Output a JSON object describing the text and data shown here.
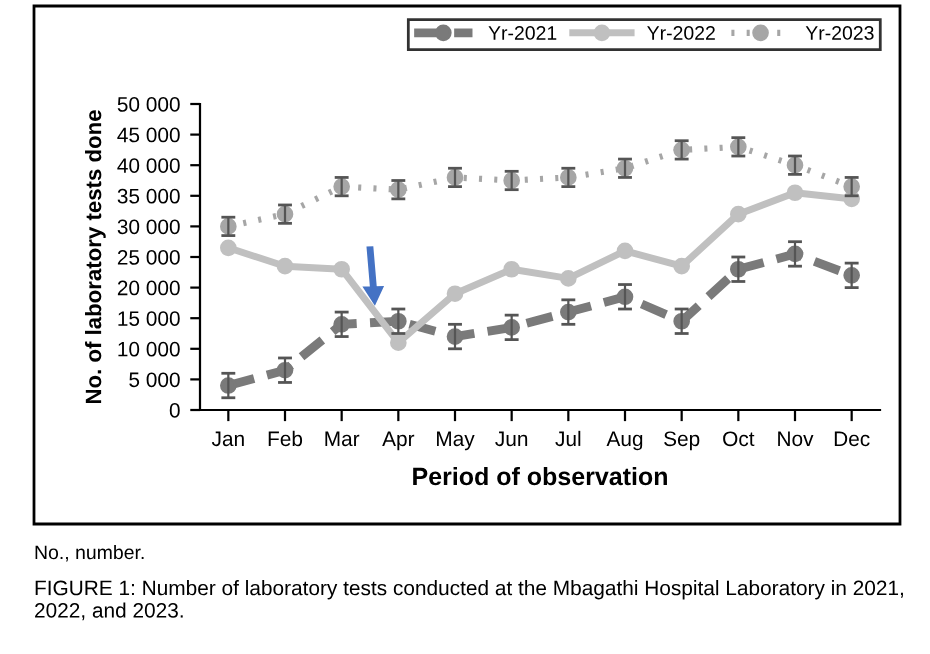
{
  "chart_data": {
    "type": "line",
    "xlabel": "Period of observation",
    "ylabel": "No. of laboratory tests done",
    "categories": [
      "Jan",
      "Feb",
      "Mar",
      "Apr",
      "May",
      "Jun",
      "Jul",
      "Aug",
      "Sep",
      "Oct",
      "Nov",
      "Dec"
    ],
    "series": [
      {
        "name": "Yr-2021",
        "color": "#7a7a7a",
        "line_style": "dashed",
        "values": [
          4000,
          6500,
          14000,
          14500,
          12000,
          13500,
          16000,
          18500,
          14500,
          23000,
          25500,
          22000
        ],
        "errors": [
          2000,
          2000,
          2000,
          2000,
          2000,
          2000,
          2000,
          2000,
          2000,
          2000,
          2000,
          2000
        ]
      },
      {
        "name": "Yr-2022",
        "color": "#c0c0c0",
        "line_style": "solid",
        "values": [
          26500,
          23500,
          23000,
          11000,
          19000,
          23000,
          21500,
          26000,
          23500,
          32000,
          35500,
          34500
        ]
      },
      {
        "name": "Yr-2023",
        "color": "#a6a6a6",
        "line_style": "dotted",
        "values": [
          30000,
          32000,
          36500,
          36000,
          38000,
          37500,
          38000,
          39500,
          42500,
          43000,
          40000,
          36500
        ],
        "errors": [
          1500,
          1500,
          1500,
          1500,
          1500,
          1500,
          1500,
          1500,
          1500,
          1500,
          1500,
          1500
        ]
      }
    ],
    "ylim": [
      0,
      50000
    ],
    "yticks": [
      0,
      {
        "value": 5000,
        "label": "5 000"
      },
      {
        "value": 10000,
        "label": "10 000"
      },
      {
        "value": 15000,
        "label": "15 000"
      },
      {
        "value": 20000,
        "label": "20 000"
      },
      {
        "value": 25000,
        "label": "25 000"
      },
      {
        "value": 30000,
        "label": "30 000"
      },
      {
        "value": 35000,
        "label": "35 000"
      },
      {
        "value": 40000,
        "label": "40 000"
      },
      {
        "value": 45000,
        "label": "45 000"
      },
      {
        "value": 50000,
        "label": "50 000"
      }
    ],
    "marker": "circle",
    "grid": false,
    "legend": "top right",
    "annotations": [
      "No., number.",
      "FIGURE 1: Number of laboratory tests conducted at the Mbagathi Hospital Laboratory in 2021, 2022, and 2023."
    ]
  }
}
